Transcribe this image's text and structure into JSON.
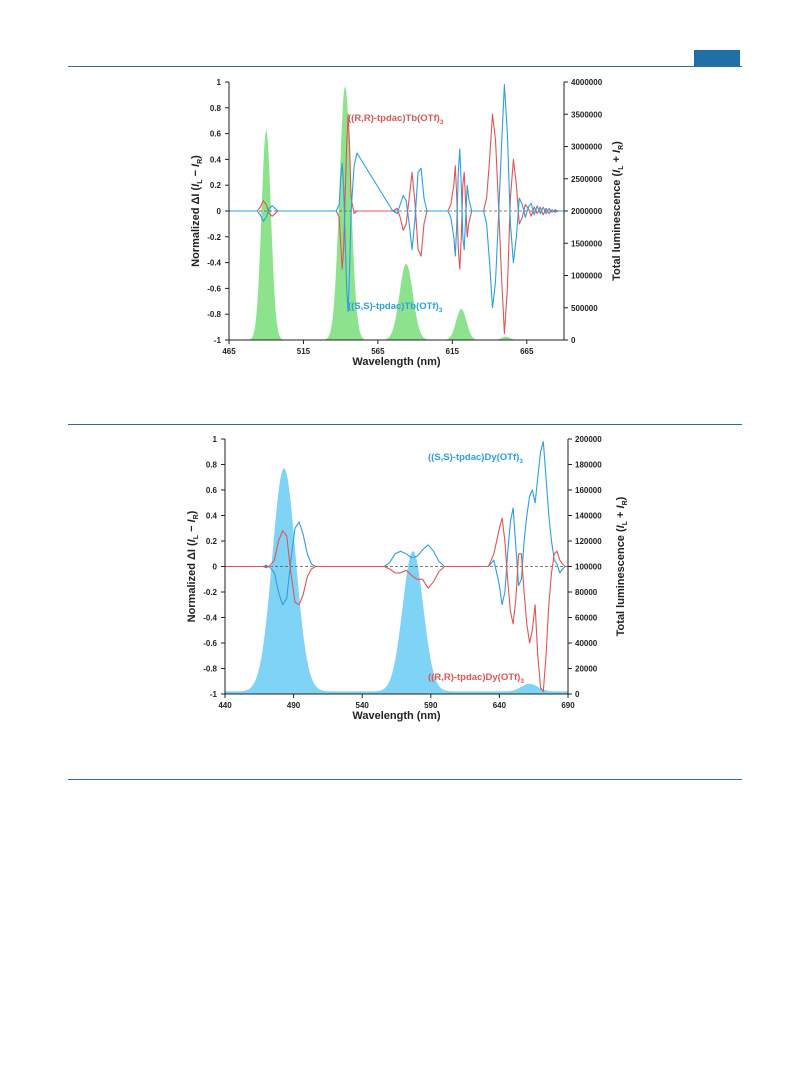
{
  "page": {
    "accent_color": "#1f6fa8"
  },
  "chart_data": [
    {
      "type": "line",
      "title": "",
      "xlabel": "Wavelength (nm)",
      "ylabel_left": "Normalized ΔI (IL − IR)",
      "ylabel_left_parts": {
        "prefix": "Normalized ΔI (",
        "IL": "I",
        "IL_sub": "L",
        "minus": " − ",
        "IR": "I",
        "IR_sub": "R",
        "suffix": ")"
      },
      "ylabel_right": "Total luminescence (IL + IR)",
      "ylabel_right_parts": {
        "prefix": "Total luminescence (",
        "IL": "I",
        "IL_sub": "L",
        "plus": " + ",
        "IR": "I",
        "IR_sub": "R",
        "suffix": ")"
      },
      "xlim": [
        465,
        690
      ],
      "xticks": [
        "465",
        "515",
        "565",
        "615",
        "665"
      ],
      "xtick_values": [
        465,
        515,
        565,
        615,
        665
      ],
      "ylim_left": [
        -1,
        1
      ],
      "yticks_left": [
        "-1",
        "-0.8",
        "-0.6",
        "-0.4",
        "-0.2",
        "0",
        "0.2",
        "0.4",
        "0.6",
        "0.8",
        "1"
      ],
      "ylim_right": [
        0,
        4000000
      ],
      "yticks_right": [
        "0",
        "500000",
        "1000000",
        "1500000",
        "2000000",
        "2500000",
        "3000000",
        "3500000",
        "4000000"
      ],
      "grid": false,
      "area": {
        "name": "Total luminescence",
        "color": "#8de38d",
        "peaks": [
          {
            "center": 490,
            "height": 3250000,
            "width": 3.2
          },
          {
            "center": 543,
            "height": 3930000,
            "width": 3.8
          },
          {
            "center": 584,
            "height": 1180000,
            "width": 4.5
          },
          {
            "center": 621,
            "height": 480000,
            "width": 3.5
          },
          {
            "center": 651,
            "height": 50000,
            "width": 3.0
          }
        ]
      },
      "series": [
        {
          "label_main": "((R,R)-tpdac)Tb(OTf)",
          "label_sub": "3",
          "color": "#e05555",
          "x": [
            465,
            484,
            486,
            488,
            490,
            492,
            494,
            496,
            498,
            500,
            537,
            539,
            540,
            541,
            542,
            543,
            544,
            545,
            546,
            547,
            549,
            551,
            575,
            578,
            580,
            582,
            584,
            586,
            588,
            590,
            592,
            594,
            596,
            598,
            612,
            614,
            616,
            617,
            618,
            619,
            620,
            621,
            622,
            623,
            624,
            625,
            626,
            628,
            636,
            638,
            640,
            642,
            644,
            646,
            648,
            650,
            652,
            654,
            656,
            658,
            660,
            662,
            664,
            666,
            668,
            670,
            672,
            674,
            676,
            678,
            680,
            682,
            684,
            686,
            688,
            690
          ],
          "y": [
            0,
            0,
            0.03,
            0.08,
            0.05,
            -0.02,
            -0.04,
            -0.02,
            0,
            0,
            0,
            -0.05,
            -0.25,
            -0.45,
            -0.3,
            0.1,
            0.5,
            0.75,
            0.5,
            0.1,
            -0.02,
            0,
            0,
            0.02,
            -0.05,
            -0.15,
            -0.1,
            0.1,
            0.3,
            0.05,
            -0.3,
            -0.35,
            -0.1,
            0,
            0,
            0.05,
            0.2,
            0.35,
            0.1,
            -0.3,
            -0.45,
            -0.2,
            0.2,
            0.3,
            0.05,
            -0.2,
            -0.1,
            0,
            0,
            0.1,
            0.4,
            0.75,
            0.55,
            0.05,
            -0.5,
            -0.95,
            -0.6,
            0.1,
            0.4,
            0.2,
            -0.1,
            -0.05,
            0.05,
            0.02,
            -0.04,
            0.03,
            -0.02,
            0.03,
            -0.03,
            0.02,
            -0.02,
            0.01,
            -0.01,
            0,
            0,
            0
          ]
        },
        {
          "label_main": "((S,S)-tpdac)Tb(OTf)",
          "label_sub": "3",
          "color": "#2b9fe0",
          "x": [
            465,
            484,
            486,
            488,
            490,
            492,
            494,
            496,
            498,
            500,
            537,
            539,
            540,
            541,
            542,
            543,
            544,
            545,
            546,
            547,
            549,
            551,
            575,
            578,
            580,
            582,
            584,
            586,
            588,
            590,
            592,
            594,
            596,
            598,
            612,
            614,
            616,
            617,
            618,
            619,
            620,
            621,
            622,
            623,
            624,
            625,
            626,
            628,
            636,
            638,
            640,
            642,
            644,
            646,
            648,
            650,
            652,
            654,
            656,
            658,
            660,
            662,
            664,
            666,
            668,
            670,
            672,
            674,
            676,
            678,
            680,
            682,
            684,
            686,
            688,
            690
          ],
          "y": [
            0,
            0,
            -0.03,
            -0.08,
            -0.05,
            0.02,
            0.04,
            0.02,
            0,
            0,
            0,
            0.05,
            0.25,
            0.37,
            0.2,
            -0.2,
            -0.6,
            -0.78,
            -0.45,
            0,
            0.35,
            0.45,
            0,
            -0.02,
            0.05,
            0.12,
            0.08,
            -0.1,
            -0.3,
            -0.05,
            0.3,
            0.33,
            0.1,
            0,
            0,
            -0.05,
            -0.2,
            -0.35,
            -0.1,
            0.3,
            0.48,
            0.2,
            -0.2,
            -0.3,
            -0.05,
            0.2,
            0.1,
            0,
            0,
            -0.1,
            -0.4,
            -0.75,
            -0.55,
            -0.05,
            0.5,
            0.98,
            0.6,
            -0.1,
            -0.4,
            -0.2,
            0.1,
            0.05,
            -0.05,
            0.03,
            0.06,
            -0.03,
            0.04,
            -0.02,
            0.03,
            -0.02,
            0.02,
            -0.01,
            0.01,
            0,
            0,
            0
          ]
        }
      ]
    },
    {
      "type": "line",
      "title": "",
      "xlabel": "Wavelength (nm)",
      "ylabel_left": "Normalized ΔI (IL − IR)",
      "ylabel_left_parts": {
        "prefix": "Normalized ΔI (",
        "IL": "I",
        "IL_sub": "L",
        "minus": " − ",
        "IR": "I",
        "IR_sub": "R",
        "suffix": ")"
      },
      "ylabel_right": "Total luminescence (IL + IR)",
      "ylabel_right_parts": {
        "prefix": "Total luminescence (",
        "IL": "I",
        "IL_sub": "L",
        "plus": " + ",
        "IR": "I",
        "IR_sub": "R",
        "suffix": ")"
      },
      "xlim": [
        440,
        690
      ],
      "xticks": [
        "440",
        "490",
        "540",
        "590",
        "640",
        "690"
      ],
      "xtick_values": [
        440,
        490,
        540,
        590,
        640,
        690
      ],
      "ylim_left": [
        -1,
        1
      ],
      "yticks_left": [
        "-1",
        "-0.8",
        "-0.6",
        "-0.4",
        "-0.2",
        "0",
        "0.2",
        "0.4",
        "0.6",
        "0.8",
        "1"
      ],
      "ylim_right": [
        0,
        200000
      ],
      "yticks_right": [
        "0",
        "20000",
        "40000",
        "60000",
        "80000",
        "100000",
        "120000",
        "140000",
        "160000",
        "180000",
        "200000"
      ],
      "grid": false,
      "area": {
        "name": "Total luminescence",
        "color": "#7fd3f5",
        "baseline": 2000,
        "peaks": [
          {
            "center": 483,
            "height": 175000,
            "width": 8.5
          },
          {
            "center": 577,
            "height": 110000,
            "width": 7.5
          },
          {
            "center": 662,
            "height": 6000,
            "width": 6.0
          }
        ]
      },
      "series": [
        {
          "label_main": "((S,S)-tpdac)Dy(OTf)",
          "label_sub": "3",
          "color": "#2b9fe0",
          "x": [
            440,
            468,
            470,
            473,
            476,
            479,
            482,
            485,
            488,
            491,
            494,
            497,
            500,
            503,
            506,
            510,
            556,
            560,
            564,
            568,
            572,
            576,
            580,
            584,
            588,
            592,
            596,
            600,
            632,
            636,
            640,
            642,
            644,
            646,
            648,
            650,
            652,
            654,
            656,
            658,
            660,
            662,
            664,
            666,
            668,
            670,
            672,
            674,
            676,
            678,
            680,
            682,
            684,
            686,
            688,
            690
          ],
          "y": [
            0,
            0,
            0.01,
            -0.01,
            -0.05,
            -0.2,
            -0.3,
            -0.25,
            0.05,
            0.3,
            0.35,
            0.25,
            0.1,
            0.02,
            0,
            0,
            0,
            0.03,
            0.1,
            0.12,
            0.1,
            0.07,
            0.08,
            0.13,
            0.17,
            0.12,
            0.04,
            0,
            0,
            0.05,
            -0.15,
            -0.3,
            -0.2,
            0.1,
            0.35,
            0.46,
            0.15,
            -0.15,
            -0.1,
            0.2,
            0.4,
            0.55,
            0.6,
            0.5,
            0.7,
            0.9,
            0.98,
            0.7,
            0.4,
            0.2,
            0.05,
            0.02,
            -0.05,
            -0.02,
            0,
            0
          ]
        },
        {
          "label_main": "((R,R)-tpdac)Dy(OTf)",
          "label_sub": "3",
          "color": "#e05555",
          "x": [
            440,
            468,
            470,
            473,
            476,
            479,
            482,
            485,
            488,
            491,
            494,
            497,
            500,
            503,
            506,
            510,
            556,
            560,
            564,
            568,
            572,
            576,
            580,
            584,
            588,
            592,
            596,
            600,
            632,
            636,
            640,
            642,
            644,
            646,
            648,
            650,
            652,
            654,
            656,
            658,
            660,
            662,
            664,
            666,
            668,
            670,
            672,
            674,
            676,
            678,
            680,
            682,
            684,
            686,
            688,
            690
          ],
          "y": [
            0,
            0,
            -0.01,
            0.01,
            0.05,
            0.2,
            0.28,
            0.24,
            -0.05,
            -0.28,
            -0.3,
            -0.22,
            -0.08,
            -0.02,
            0,
            0,
            0,
            -0.02,
            -0.05,
            -0.05,
            -0.03,
            -0.07,
            -0.1,
            -0.1,
            -0.17,
            -0.12,
            -0.04,
            0,
            0,
            0.1,
            0.3,
            0.38,
            0.2,
            -0.1,
            -0.35,
            -0.45,
            -0.25,
            0.1,
            0.1,
            -0.2,
            -0.45,
            -0.6,
            -0.5,
            -0.3,
            -0.7,
            -0.95,
            -0.98,
            -0.7,
            -0.3,
            -0.05,
            0.1,
            0.12,
            0.05,
            0.02,
            0,
            0
          ]
        }
      ]
    }
  ]
}
